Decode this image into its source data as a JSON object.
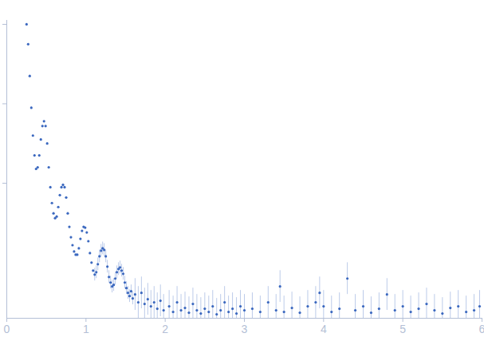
{
  "chart_data": {
    "type": "scatter",
    "x": [
      0.25,
      0.27,
      0.29,
      0.31,
      0.33,
      0.35,
      0.37,
      0.39,
      0.41,
      0.43,
      0.45,
      0.47,
      0.49,
      0.51,
      0.53,
      0.55,
      0.57,
      0.59,
      0.61,
      0.63,
      0.65,
      0.67,
      0.69,
      0.71,
      0.73,
      0.75,
      0.77,
      0.79,
      0.81,
      0.83,
      0.85,
      0.87,
      0.89,
      0.91,
      0.93,
      0.95,
      0.97,
      0.99,
      1.01,
      1.03,
      1.05,
      1.07,
      1.09,
      1.11,
      1.13,
      1.15,
      1.17,
      1.19,
      1.21,
      1.23,
      1.25,
      1.27,
      1.29,
      1.31,
      1.33,
      1.35,
      1.37,
      1.39,
      1.41,
      1.43,
      1.45,
      1.47,
      1.49,
      1.51,
      1.53,
      1.55,
      1.57,
      1.59,
      1.62,
      1.66,
      1.7,
      1.74,
      1.78,
      1.82,
      1.86,
      1.9,
      1.94,
      1.98,
      2.05,
      2.1,
      2.15,
      2.2,
      2.25,
      2.3,
      2.35,
      2.4,
      2.45,
      2.5,
      2.55,
      2.6,
      2.65,
      2.7,
      2.75,
      2.8,
      2.85,
      2.9,
      2.95,
      3.0,
      3.1,
      3.2,
      3.3,
      3.4,
      3.45,
      3.5,
      3.6,
      3.7,
      3.8,
      3.9,
      3.95,
      4.0,
      4.1,
      4.2,
      4.3,
      4.4,
      4.5,
      4.6,
      4.7,
      4.8,
      4.9,
      5.0,
      5.1,
      5.2,
      5.3,
      5.4,
      5.5,
      5.6,
      5.7,
      5.8,
      5.9,
      5.97
    ],
    "values": [
      3.0,
      2.75,
      2.35,
      1.95,
      1.6,
      1.35,
      1.18,
      1.2,
      1.35,
      1.55,
      1.72,
      1.78,
      1.72,
      1.5,
      1.2,
      0.95,
      0.75,
      0.62,
      0.56,
      0.58,
      0.7,
      0.85,
      0.95,
      0.98,
      0.95,
      0.82,
      0.62,
      0.45,
      0.32,
      0.22,
      0.14,
      0.1,
      0.1,
      0.18,
      0.3,
      0.4,
      0.45,
      0.44,
      0.38,
      0.27,
      0.12,
      0.0,
      -0.1,
      -0.15,
      -0.12,
      -0.02,
      0.08,
      0.15,
      0.18,
      0.16,
      0.08,
      -0.05,
      -0.18,
      -0.25,
      -0.3,
      -0.28,
      -0.2,
      -0.12,
      -0.08,
      -0.06,
      -0.1,
      -0.14,
      -0.25,
      -0.32,
      -0.38,
      -0.42,
      -0.36,
      -0.45,
      -0.4,
      -0.5,
      -0.38,
      -0.52,
      -0.46,
      -0.55,
      -0.5,
      -0.58,
      -0.48,
      -0.6,
      -0.55,
      -0.62,
      -0.5,
      -0.6,
      -0.57,
      -0.63,
      -0.52,
      -0.6,
      -0.64,
      -0.58,
      -0.62,
      -0.55,
      -0.65,
      -0.6,
      -0.5,
      -0.62,
      -0.58,
      -0.64,
      -0.55,
      -0.6,
      -0.58,
      -0.62,
      -0.5,
      -0.6,
      -0.3,
      -0.62,
      -0.57,
      -0.63,
      -0.55,
      -0.5,
      -0.38,
      -0.55,
      -0.62,
      -0.58,
      -0.2,
      -0.6,
      -0.55,
      -0.63,
      -0.58,
      -0.4,
      -0.6,
      -0.55,
      -0.62,
      -0.58,
      -0.52,
      -0.6,
      -0.64,
      -0.57,
      -0.55,
      -0.62,
      -0.6,
      -0.55
    ],
    "errors": [
      0.01,
      0.01,
      0.01,
      0.01,
      0.01,
      0.01,
      0.01,
      0.01,
      0.01,
      0.01,
      0.01,
      0.01,
      0.01,
      0.01,
      0.01,
      0.01,
      0.01,
      0.01,
      0.01,
      0.01,
      0.01,
      0.01,
      0.01,
      0.01,
      0.01,
      0.01,
      0.01,
      0.01,
      0.01,
      0.01,
      0.01,
      0.01,
      0.01,
      0.01,
      0.01,
      0.01,
      0.01,
      0.01,
      0.01,
      0.01,
      0.01,
      0.01,
      0.01,
      0.08,
      0.08,
      0.08,
      0.08,
      0.08,
      0.08,
      0.08,
      0.08,
      0.08,
      0.08,
      0.08,
      0.08,
      0.08,
      0.08,
      0.08,
      0.08,
      0.08,
      0.08,
      0.08,
      0.08,
      0.08,
      0.08,
      0.08,
      0.08,
      0.08,
      0.2,
      0.2,
      0.2,
      0.2,
      0.2,
      0.2,
      0.2,
      0.2,
      0.2,
      0.2,
      0.2,
      0.2,
      0.2,
      0.2,
      0.2,
      0.2,
      0.2,
      0.2,
      0.2,
      0.2,
      0.2,
      0.2,
      0.2,
      0.2,
      0.2,
      0.2,
      0.2,
      0.2,
      0.2,
      0.2,
      0.2,
      0.2,
      0.2,
      0.2,
      0.2,
      0.2,
      0.2,
      0.2,
      0.2,
      0.2,
      0.2,
      0.2,
      0.2,
      0.2,
      0.2,
      0.2,
      0.2,
      0.2,
      0.2,
      0.2,
      0.2,
      0.2,
      0.2,
      0.2,
      0.2,
      0.2,
      0.2,
      0.2,
      0.2,
      0.2,
      0.2,
      0.2
    ],
    "color": "#3b68bf",
    "xlim": [
      0,
      6
    ],
    "xticks": [
      0,
      1,
      2,
      3,
      4,
      5,
      6
    ],
    "ylim": [
      -0.7,
      3.05
    ],
    "yticks": [
      1,
      2,
      3
    ],
    "tick_labels": "x",
    "marker": "circle",
    "grid": false
  }
}
